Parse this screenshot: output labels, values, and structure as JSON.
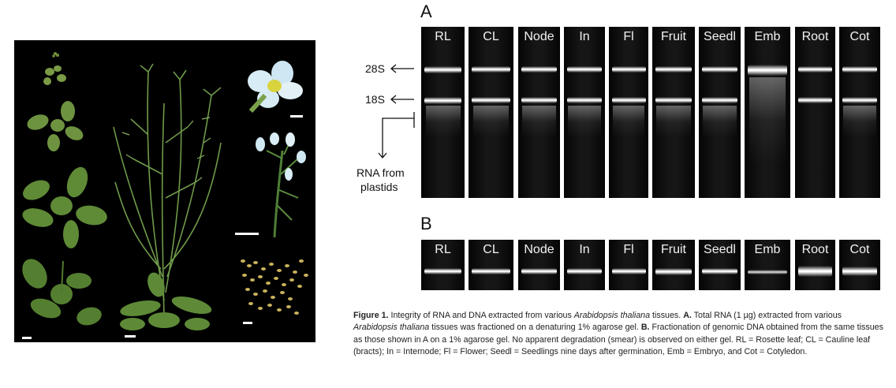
{
  "panel_a_label": "A",
  "panel_b_label": "B",
  "lanes": [
    "RL",
    "CL",
    "Node",
    "In",
    "Fl",
    "Fruit",
    "Seedl",
    "Emb",
    "Root",
    "Cot"
  ],
  "markers": {
    "rrna_28s": "28S",
    "rrna_18s": "18S",
    "plastid_line1": "RNA from",
    "plastid_line2": "plastids"
  },
  "caption": {
    "figure_label": "Figure 1.",
    "seg1": " Integrity of RNA and DNA extracted from various ",
    "species1": "Arabidopsis thaliana",
    "seg2": " tissues. ",
    "a_label": "A.",
    "seg3": " Total RNA (1 µg) extracted from various ",
    "species2": "Arabidopsis thaliana",
    "seg4": " tissues was fractioned on a denaturing 1% agarose gel. ",
    "b_label": "B.",
    "seg5": " Fractionation of genomic DNA obtained from the same tissues as those shown in A on a 1% agarose gel. No apparent degradation (smear) is observed on either gel. RL = Rosette leaf; CL = Cauline leaf (bracts); In = Internode; Fl = Flower; Seedl = Seedlings nine days after germination, Emb = Embryo, and Cot = Cotyledon."
  }
}
